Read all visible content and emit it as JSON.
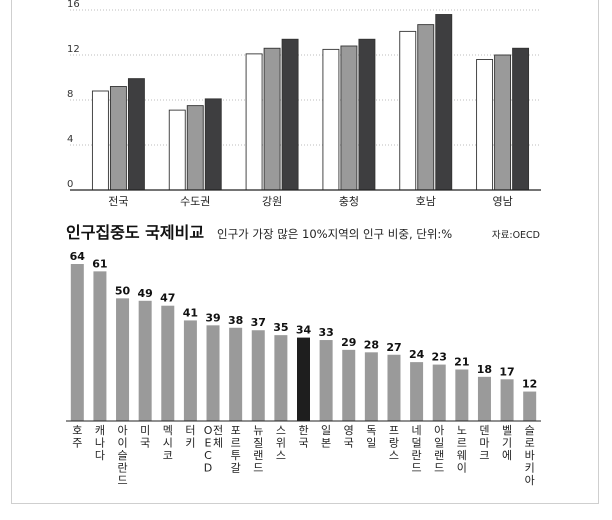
{
  "chart_data": [
    {
      "type": "bar",
      "categories": [
        "전국",
        "수도권",
        "강원",
        "충청",
        "호남",
        "영남"
      ],
      "series": [
        {
          "values": [
            8.8,
            7.1,
            12.1,
            12.5,
            14.1,
            11.6
          ],
          "color": "#ffffff"
        },
        {
          "values": [
            9.2,
            7.5,
            12.6,
            12.8,
            14.7,
            12.0
          ],
          "color": "#9a9a9a"
        },
        {
          "values": [
            9.9,
            8.1,
            13.4,
            13.4,
            15.6,
            12.6
          ],
          "color": "#3e3e40"
        }
      ],
      "yticks": [
        0,
        4,
        8,
        12,
        16
      ],
      "ylim": [
        0,
        16
      ],
      "grid": true
    },
    {
      "type": "bar",
      "title": "인구집중도 국제비교",
      "subtitle": "인구가 가장 많은 10%지역의 인구 비중, 단위:%",
      "source": "자료:OECD",
      "categories": [
        "호주",
        "캐나다",
        "아이슬란드",
        "미국",
        "멕시코",
        "터키",
        "OECD 전체",
        "포르투갈",
        "뉴질랜드",
        "스위스",
        "한국",
        "일본",
        "영국",
        "독일",
        "프랑스",
        "네덜란드",
        "아일랜드",
        "노르웨이",
        "덴마크",
        "벨기에",
        "슬로바키아"
      ],
      "values": [
        64,
        61,
        50,
        49,
        47,
        41,
        39,
        38,
        37,
        35,
        34,
        33,
        29,
        28,
        27,
        24,
        23,
        21,
        18,
        17,
        12
      ],
      "bar_color": "#9a9a9a",
      "highlight": {
        "category": "한국",
        "color": "#1e1e1e"
      }
    }
  ]
}
